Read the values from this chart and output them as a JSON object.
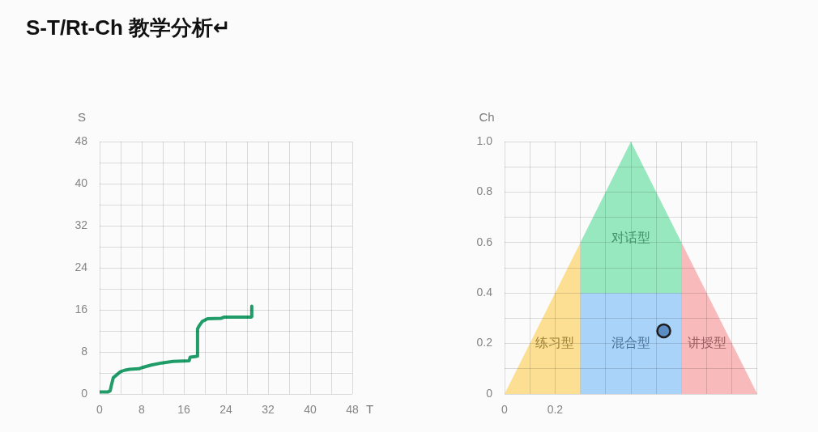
{
  "chart_data": [
    {
      "type": "line",
      "title": "S-T/Rt-Ch 教学分析↵",
      "xlabel": "T",
      "ylabel": "S",
      "color": "#1f9c68",
      "x": [
        0,
        1.6,
        2,
        2.2,
        2.6,
        3.2,
        3.9,
        4.7,
        5.7,
        7.5,
        8,
        9.8,
        11.8,
        13.9,
        17,
        17.2,
        18.2,
        18.5,
        18.6,
        19,
        19.5,
        20.5,
        23.1,
        23.6,
        28.7,
        28.9,
        28.9
      ],
      "values": [
        0.4,
        0.4,
        0.6,
        1.5,
        3.1,
        3.6,
        4.2,
        4.5,
        4.7,
        4.8,
        5,
        5.5,
        5.9,
        6.2,
        6.3,
        7,
        7.1,
        7.2,
        12.4,
        13.1,
        13.8,
        14.3,
        14.4,
        14.6,
        14.6,
        14.7,
        16.7
      ],
      "xlim": [
        0,
        48
      ],
      "ylim": [
        0,
        48
      ],
      "xticks": [
        0,
        {
          "value": 4,
          "label": null
        },
        8,
        {
          "value": 12,
          "label": null
        },
        16,
        {
          "value": 20,
          "label": null
        },
        24,
        {
          "value": 28,
          "label": null
        },
        32,
        {
          "value": 36,
          "label": null
        },
        40,
        {
          "value": 44,
          "label": null
        },
        48
      ],
      "yticks": [
        0,
        {
          "value": 4,
          "label": null
        },
        8,
        {
          "value": 12,
          "label": null
        },
        16,
        {
          "value": 20,
          "label": null
        },
        24,
        {
          "value": 28,
          "label": null
        },
        32,
        {
          "value": 36,
          "label": null
        },
        40,
        {
          "value": 44,
          "label": null
        },
        48
      ],
      "grid": true
    },
    {
      "type": "area",
      "ylabel": "Ch",
      "xlim": [
        0,
        1
      ],
      "ylim": [
        0,
        1
      ],
      "xticks": [
        0,
        {
          "value": 0.1,
          "label": null
        },
        0.2,
        {
          "value": 0.3,
          "label": null
        },
        {
          "value": 0.4,
          "label": null
        },
        {
          "value": 0.5,
          "label": null
        },
        {
          "value": 0.6,
          "label": null
        },
        {
          "value": 0.7,
          "label": null
        },
        {
          "value": 0.8,
          "label": null
        },
        {
          "value": 0.9,
          "label": null
        }
      ],
      "yticks": [
        0,
        {
          "value": 0.1,
          "label": null
        },
        0.2,
        {
          "value": 0.3,
          "label": null
        },
        0.4,
        {
          "value": 0.5,
          "label": null
        },
        0.6,
        {
          "value": 0.7,
          "label": null
        },
        0.8,
        {
          "value": 0.9,
          "label": null
        },
        {
          "value": 1,
          "label": "1.0"
        }
      ],
      "grid": true,
      "series": [
        {
          "name": "练习型",
          "color": "#fcdf93",
          "x": [
            0,
            0.3
          ],
          "values": [
            0,
            0.6
          ]
        },
        {
          "name": "混合型",
          "color": "#a9d3f8",
          "x": [
            0.3,
            0.7
          ],
          "values": [
            0.4,
            0.4
          ]
        },
        {
          "name": "对话型",
          "color": "#97e8be",
          "x": [
            0.3,
            0.5,
            0.7
          ],
          "values": [
            0.6,
            1,
            0.6
          ]
        },
        {
          "name": "讲授型",
          "color": "#f9babc",
          "x": [
            0.7,
            1
          ],
          "values": [
            0.6,
            0
          ]
        },
        {
          "type": "scatter",
          "marker": "circle",
          "color": "#5b8cc4",
          "x": [
            0.63
          ],
          "values": [
            0.25
          ]
        }
      ]
    }
  ]
}
